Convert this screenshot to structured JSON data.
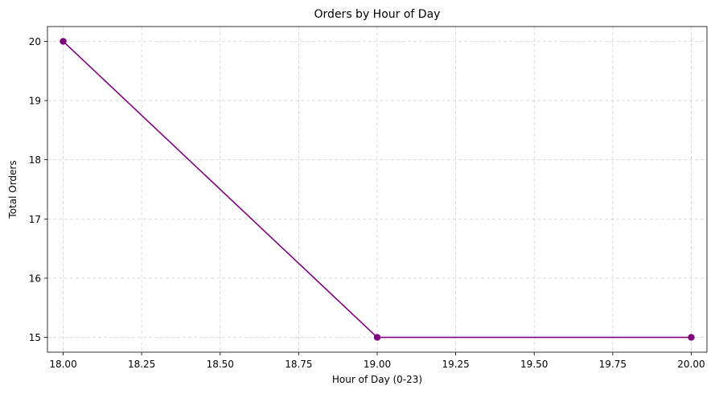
{
  "chart_data": {
    "type": "line",
    "title": "Orders by Hour of Day",
    "xlabel": "Hour of Day (0-23)",
    "ylabel": "Total Orders",
    "x": [
      18,
      19,
      20
    ],
    "series": [
      {
        "values": [
          20,
          15,
          15
        ],
        "color": "#800080",
        "marker": "circle"
      }
    ],
    "xlim": [
      17.95,
      20.05
    ],
    "ylim": [
      14.75,
      20.25
    ],
    "xticks": [
      "18.00",
      "18.25",
      "18.50",
      "18.75",
      "19.00",
      "19.25",
      "19.50",
      "19.75",
      "20.00"
    ],
    "yticks": [
      "15",
      "16",
      "17",
      "18",
      "19",
      "20"
    ],
    "grid": true
  }
}
